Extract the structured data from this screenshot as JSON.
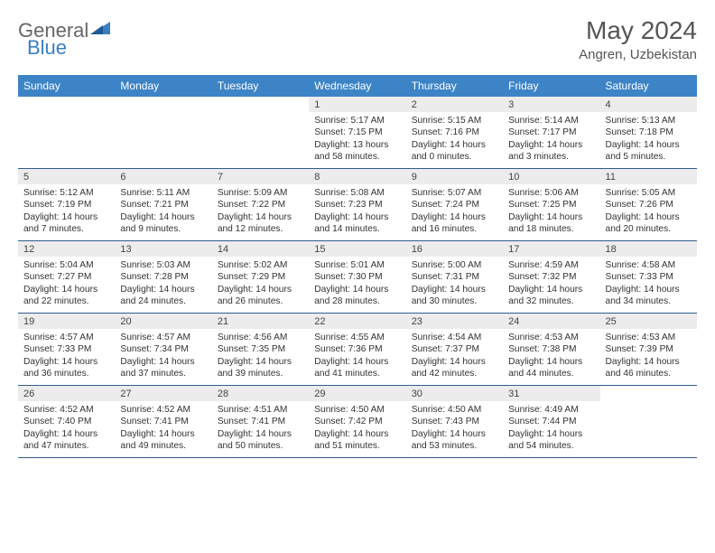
{
  "logo": {
    "part1": "General",
    "part2": "Blue"
  },
  "title": "May 2024",
  "location": "Angren, Uzbekistan",
  "colors": {
    "header_bg": "#3d84c6",
    "header_text": "#ffffff",
    "daynum_bg": "#ececec",
    "border": "#2f5d8f",
    "logo_blue": "#3a7fc2",
    "text": "#333333"
  },
  "day_headers": [
    "Sunday",
    "Monday",
    "Tuesday",
    "Wednesday",
    "Thursday",
    "Friday",
    "Saturday"
  ],
  "weeks": [
    [
      {
        "blank": true
      },
      {
        "blank": true
      },
      {
        "blank": true
      },
      {
        "n": "1",
        "sunrise": "5:17 AM",
        "sunset": "7:15 PM",
        "daylight": "13 hours and 58 minutes."
      },
      {
        "n": "2",
        "sunrise": "5:15 AM",
        "sunset": "7:16 PM",
        "daylight": "14 hours and 0 minutes."
      },
      {
        "n": "3",
        "sunrise": "5:14 AM",
        "sunset": "7:17 PM",
        "daylight": "14 hours and 3 minutes."
      },
      {
        "n": "4",
        "sunrise": "5:13 AM",
        "sunset": "7:18 PM",
        "daylight": "14 hours and 5 minutes."
      }
    ],
    [
      {
        "n": "5",
        "sunrise": "5:12 AM",
        "sunset": "7:19 PM",
        "daylight": "14 hours and 7 minutes."
      },
      {
        "n": "6",
        "sunrise": "5:11 AM",
        "sunset": "7:21 PM",
        "daylight": "14 hours and 9 minutes."
      },
      {
        "n": "7",
        "sunrise": "5:09 AM",
        "sunset": "7:22 PM",
        "daylight": "14 hours and 12 minutes."
      },
      {
        "n": "8",
        "sunrise": "5:08 AM",
        "sunset": "7:23 PM",
        "daylight": "14 hours and 14 minutes."
      },
      {
        "n": "9",
        "sunrise": "5:07 AM",
        "sunset": "7:24 PM",
        "daylight": "14 hours and 16 minutes."
      },
      {
        "n": "10",
        "sunrise": "5:06 AM",
        "sunset": "7:25 PM",
        "daylight": "14 hours and 18 minutes."
      },
      {
        "n": "11",
        "sunrise": "5:05 AM",
        "sunset": "7:26 PM",
        "daylight": "14 hours and 20 minutes."
      }
    ],
    [
      {
        "n": "12",
        "sunrise": "5:04 AM",
        "sunset": "7:27 PM",
        "daylight": "14 hours and 22 minutes."
      },
      {
        "n": "13",
        "sunrise": "5:03 AM",
        "sunset": "7:28 PM",
        "daylight": "14 hours and 24 minutes."
      },
      {
        "n": "14",
        "sunrise": "5:02 AM",
        "sunset": "7:29 PM",
        "daylight": "14 hours and 26 minutes."
      },
      {
        "n": "15",
        "sunrise": "5:01 AM",
        "sunset": "7:30 PM",
        "daylight": "14 hours and 28 minutes."
      },
      {
        "n": "16",
        "sunrise": "5:00 AM",
        "sunset": "7:31 PM",
        "daylight": "14 hours and 30 minutes."
      },
      {
        "n": "17",
        "sunrise": "4:59 AM",
        "sunset": "7:32 PM",
        "daylight": "14 hours and 32 minutes."
      },
      {
        "n": "18",
        "sunrise": "4:58 AM",
        "sunset": "7:33 PM",
        "daylight": "14 hours and 34 minutes."
      }
    ],
    [
      {
        "n": "19",
        "sunrise": "4:57 AM",
        "sunset": "7:33 PM",
        "daylight": "14 hours and 36 minutes."
      },
      {
        "n": "20",
        "sunrise": "4:57 AM",
        "sunset": "7:34 PM",
        "daylight": "14 hours and 37 minutes."
      },
      {
        "n": "21",
        "sunrise": "4:56 AM",
        "sunset": "7:35 PM",
        "daylight": "14 hours and 39 minutes."
      },
      {
        "n": "22",
        "sunrise": "4:55 AM",
        "sunset": "7:36 PM",
        "daylight": "14 hours and 41 minutes."
      },
      {
        "n": "23",
        "sunrise": "4:54 AM",
        "sunset": "7:37 PM",
        "daylight": "14 hours and 42 minutes."
      },
      {
        "n": "24",
        "sunrise": "4:53 AM",
        "sunset": "7:38 PM",
        "daylight": "14 hours and 44 minutes."
      },
      {
        "n": "25",
        "sunrise": "4:53 AM",
        "sunset": "7:39 PM",
        "daylight": "14 hours and 46 minutes."
      }
    ],
    [
      {
        "n": "26",
        "sunrise": "4:52 AM",
        "sunset": "7:40 PM",
        "daylight": "14 hours and 47 minutes."
      },
      {
        "n": "27",
        "sunrise": "4:52 AM",
        "sunset": "7:41 PM",
        "daylight": "14 hours and 49 minutes."
      },
      {
        "n": "28",
        "sunrise": "4:51 AM",
        "sunset": "7:41 PM",
        "daylight": "14 hours and 50 minutes."
      },
      {
        "n": "29",
        "sunrise": "4:50 AM",
        "sunset": "7:42 PM",
        "daylight": "14 hours and 51 minutes."
      },
      {
        "n": "30",
        "sunrise": "4:50 AM",
        "sunset": "7:43 PM",
        "daylight": "14 hours and 53 minutes."
      },
      {
        "n": "31",
        "sunrise": "4:49 AM",
        "sunset": "7:44 PM",
        "daylight": "14 hours and 54 minutes."
      },
      {
        "blank": true
      }
    ]
  ],
  "labels": {
    "sunrise": "Sunrise:",
    "sunset": "Sunset:",
    "daylight": "Daylight:"
  }
}
